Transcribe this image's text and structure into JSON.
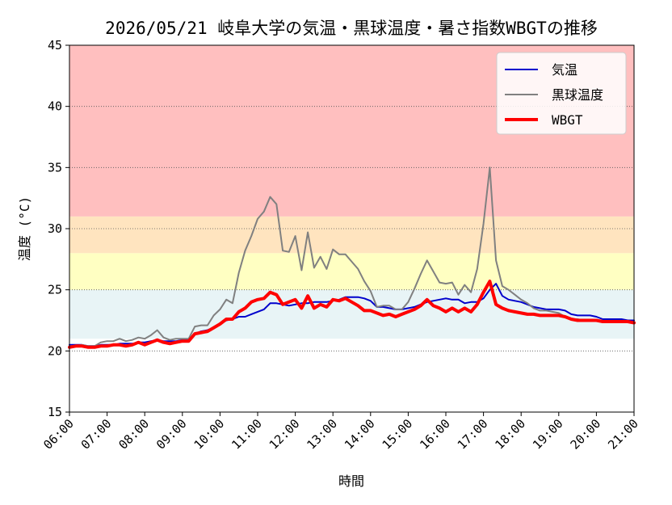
{
  "chart_data": {
    "type": "line",
    "title": "2026/05/21 岐阜大学の気温・黒球温度・暑さ指数WBGTの推移",
    "xlabel": "時間",
    "ylabel": "温度 (°C)",
    "xlim": [
      "06:00",
      "21:00"
    ],
    "ylim": [
      15,
      45
    ],
    "x_ticks": [
      "06:00",
      "07:00",
      "08:00",
      "09:00",
      "10:00",
      "11:00",
      "12:00",
      "13:00",
      "14:00",
      "15:00",
      "16:00",
      "17:00",
      "18:00",
      "19:00",
      "20:00",
      "21:00"
    ],
    "y_ticks": [
      15,
      20,
      25,
      30,
      35,
      40,
      45
    ],
    "grid": "horizontal dotted",
    "legend_position": "top-right",
    "bands": [
      {
        "from": 21,
        "to": 25,
        "color": "#e8f4f6"
      },
      {
        "from": 25,
        "to": 28,
        "color": "#ffffc2"
      },
      {
        "from": 28,
        "to": 31,
        "color": "#ffe4bf"
      },
      {
        "from": 31,
        "to": 45,
        "color": "#ffbfbf"
      }
    ],
    "x": [
      "06:00",
      "06:10",
      "06:20",
      "06:30",
      "06:40",
      "06:50",
      "07:00",
      "07:10",
      "07:20",
      "07:30",
      "07:40",
      "07:50",
      "08:00",
      "08:10",
      "08:20",
      "08:30",
      "08:40",
      "08:50",
      "09:00",
      "09:10",
      "09:20",
      "09:30",
      "09:40",
      "09:50",
      "10:00",
      "10:10",
      "10:20",
      "10:30",
      "10:40",
      "10:50",
      "11:00",
      "11:10",
      "11:20",
      "11:30",
      "11:40",
      "11:50",
      "12:00",
      "12:10",
      "12:20",
      "12:30",
      "12:40",
      "12:50",
      "13:00",
      "13:10",
      "13:20",
      "13:30",
      "13:40",
      "13:50",
      "14:00",
      "14:10",
      "14:20",
      "14:30",
      "14:40",
      "14:50",
      "15:00",
      "15:10",
      "15:20",
      "15:30",
      "15:40",
      "15:50",
      "16:00",
      "16:10",
      "16:20",
      "16:30",
      "16:40",
      "16:50",
      "17:00",
      "17:10",
      "17:20",
      "17:30",
      "17:40",
      "17:50",
      "18:00",
      "18:10",
      "18:20",
      "18:30",
      "18:40",
      "18:50",
      "19:00",
      "19:10",
      "19:20",
      "19:30",
      "19:40",
      "19:50",
      "20:00",
      "20:10",
      "20:20",
      "20:30",
      "20:40",
      "20:50",
      "21:00"
    ],
    "series": [
      {
        "name": "気温",
        "color": "#0000cc",
        "width": 2,
        "values": [
          20.5,
          20.5,
          20.5,
          20.4,
          20.4,
          20.5,
          20.5,
          20.5,
          20.6,
          20.6,
          20.6,
          20.7,
          20.7,
          20.8,
          20.9,
          20.8,
          20.8,
          20.8,
          20.9,
          20.9,
          21.4,
          21.6,
          21.7,
          21.9,
          22.2,
          22.5,
          22.6,
          22.8,
          22.8,
          23.0,
          23.2,
          23.4,
          23.9,
          23.9,
          23.8,
          23.7,
          23.8,
          23.9,
          23.9,
          24.0,
          24.0,
          24.0,
          24.1,
          24.2,
          24.4,
          24.4,
          24.4,
          24.3,
          24.1,
          23.6,
          23.6,
          23.5,
          23.4,
          23.4,
          23.5,
          23.6,
          23.8,
          24.0,
          24.1,
          24.2,
          24.3,
          24.2,
          24.2,
          23.9,
          24.0,
          24.0,
          24.3,
          25.0,
          25.5,
          24.5,
          24.2,
          24.1,
          24.0,
          23.8,
          23.6,
          23.5,
          23.4,
          23.4,
          23.4,
          23.3,
          23.0,
          22.9,
          22.9,
          22.9,
          22.8,
          22.6,
          22.6,
          22.6,
          22.6,
          22.5,
          22.5
        ]
      },
      {
        "name": "黒球温度",
        "color": "#808080",
        "width": 2,
        "values": [
          20.4,
          20.4,
          20.5,
          20.4,
          20.4,
          20.7,
          20.8,
          20.8,
          21.0,
          20.8,
          20.9,
          21.1,
          21.0,
          21.3,
          21.7,
          21.1,
          20.9,
          21.0,
          21.0,
          21.0,
          22.0,
          22.1,
          22.1,
          22.9,
          23.4,
          24.2,
          23.9,
          26.4,
          28.2,
          29.4,
          30.8,
          31.4,
          32.6,
          32.0,
          28.2,
          28.1,
          29.4,
          26.6,
          29.7,
          26.8,
          27.7,
          26.7,
          28.3,
          27.9,
          27.9,
          27.3,
          26.7,
          25.7,
          24.9,
          23.6,
          23.7,
          23.7,
          23.4,
          23.4,
          24.0,
          25.1,
          26.3,
          27.4,
          26.5,
          25.6,
          25.5,
          25.6,
          24.6,
          25.4,
          24.8,
          26.7,
          30.4,
          35.0,
          27.4,
          25.3,
          25.0,
          24.6,
          24.2,
          23.9,
          23.5,
          23.3,
          23.3,
          23.2,
          23.1,
          22.8,
          22.6,
          22.6,
          22.5,
          22.5,
          22.5,
          22.4,
          22.4,
          22.4,
          22.4,
          22.4,
          22.3
        ]
      },
      {
        "name": "WBGT",
        "color": "#ff0000",
        "width": 4,
        "values": [
          20.3,
          20.4,
          20.4,
          20.3,
          20.3,
          20.4,
          20.4,
          20.5,
          20.5,
          20.4,
          20.5,
          20.7,
          20.5,
          20.7,
          20.9,
          20.7,
          20.6,
          20.7,
          20.8,
          20.8,
          21.4,
          21.5,
          21.6,
          21.9,
          22.2,
          22.6,
          22.6,
          23.2,
          23.5,
          24.0,
          24.2,
          24.3,
          24.8,
          24.6,
          23.8,
          24.0,
          24.2,
          23.5,
          24.5,
          23.5,
          23.8,
          23.6,
          24.2,
          24.1,
          24.3,
          24.0,
          23.7,
          23.3,
          23.3,
          23.1,
          22.9,
          23.0,
          22.8,
          23.0,
          23.2,
          23.4,
          23.7,
          24.2,
          23.7,
          23.5,
          23.2,
          23.5,
          23.2,
          23.5,
          23.2,
          23.8,
          24.8,
          25.7,
          23.8,
          23.5,
          23.3,
          23.2,
          23.1,
          23.0,
          23.0,
          22.9,
          22.9,
          22.9,
          22.9,
          22.8,
          22.6,
          22.5,
          22.5,
          22.5,
          22.5,
          22.4,
          22.4,
          22.4,
          22.4,
          22.4,
          22.3
        ]
      }
    ]
  }
}
